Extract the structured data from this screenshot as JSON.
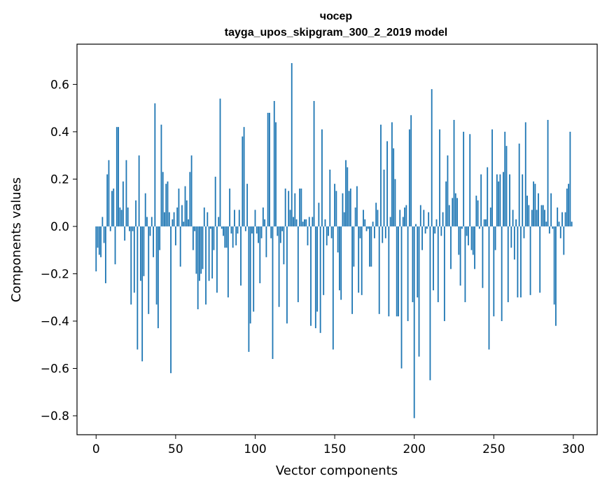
{
  "chart_data": {
    "type": "bar",
    "title_line1": "чосер",
    "title_line2": "tayga_upos_skipgram_300_2_2019 model",
    "xlabel": "Vector components",
    "ylabel": "Components values",
    "xlim": [
      -12,
      315
    ],
    "ylim": [
      -0.88,
      0.77
    ],
    "xticks": [
      0,
      50,
      100,
      150,
      200,
      250,
      300
    ],
    "xtick_labels": [
      "0",
      "50",
      "100",
      "150",
      "200",
      "250",
      "300"
    ],
    "yticks": [
      -0.8,
      -0.6,
      -0.4,
      -0.2,
      0.0,
      0.2,
      0.4,
      0.6
    ],
    "ytick_labels": [
      "−0.8",
      "−0.6",
      "−0.4",
      "−0.2",
      "0.0",
      "0.2",
      "0.4",
      "0.6"
    ],
    "bar_color": "#1f77b4",
    "values": [
      -0.19,
      -0.09,
      -0.12,
      -0.13,
      0.04,
      -0.07,
      -0.24,
      0.22,
      0.28,
      -0.02,
      0.15,
      0.16,
      -0.16,
      0.42,
      0.42,
      0.08,
      0.07,
      0.19,
      -0.06,
      0.28,
      0.08,
      -0.02,
      -0.33,
      -0.02,
      -0.28,
      0.11,
      -0.52,
      0.3,
      -0.23,
      -0.57,
      -0.21,
      0.14,
      0.04,
      -0.37,
      -0.04,
      0.04,
      -0.13,
      0.52,
      -0.33,
      -0.43,
      -0.1,
      0.43,
      0.23,
      0.06,
      0.18,
      0.19,
      0.06,
      -0.62,
      0.03,
      0.06,
      -0.08,
      0.08,
      0.16,
      -0.17,
      0.09,
      0.02,
      0.17,
      0.11,
      0.03,
      0.23,
      0.3,
      -0.1,
      -0.02,
      -0.2,
      -0.35,
      -0.23,
      -0.2,
      -0.18,
      0.08,
      -0.33,
      0.06,
      -0.23,
      -0.01,
      -0.22,
      -0.1,
      0.21,
      -0.28,
      0.04,
      0.54,
      -0.01,
      -0.04,
      -0.09,
      -0.09,
      -0.3,
      0.16,
      -0.03,
      -0.09,
      0.07,
      -0.08,
      -0.03,
      0.07,
      -0.25,
      0.38,
      0.42,
      -0.02,
      0.18,
      -0.53,
      -0.41,
      -0.03,
      -0.36,
      0.07,
      -0.03,
      -0.07,
      -0.24,
      -0.05,
      0.08,
      0.03,
      -0.13,
      0.48,
      0.48,
      -0.05,
      -0.56,
      0.53,
      0.44,
      -0.04,
      -0.34,
      -0.07,
      -0.02,
      -0.16,
      0.16,
      -0.41,
      0.15,
      0.07,
      0.69,
      0.04,
      0.14,
      0.03,
      -0.32,
      0.16,
      0.16,
      0.02,
      0.03,
      0.03,
      -0.08,
      0.04,
      -0.42,
      0.04,
      0.53,
      -0.43,
      -0.36,
      0.1,
      -0.45,
      0.41,
      -0.29,
      0.03,
      -0.08,
      -0.04,
      0.24,
      -0.05,
      -0.52,
      0.18,
      0.15,
      -0.11,
      -0.27,
      -0.31,
      0.14,
      0.06,
      0.28,
      0.25,
      0.15,
      0.16,
      -0.37,
      -0.17,
      0.08,
      0.17,
      -0.28,
      -0.05,
      -0.29,
      0.07,
      0.03,
      -0.02,
      -0.01,
      -0.17,
      -0.17,
      0.02,
      -0.05,
      0.1,
      0.07,
      -0.37,
      0.43,
      -0.07,
      0.24,
      -0.05,
      0.36,
      -0.38,
      0.04,
      0.44,
      0.33,
      0.2,
      -0.38,
      -0.38,
      0.07,
      -0.6,
      0.04,
      0.08,
      0.09,
      -0.4,
      0.41,
      0.47,
      -0.32,
      -0.81,
      0.01,
      -0.3,
      -0.55,
      0.09,
      -0.1,
      0.07,
      -0.03,
      -0.01,
      0.06,
      -0.65,
      0.58,
      -0.27,
      -0.03,
      0.03,
      -0.32,
      0.41,
      -0.04,
      0.06,
      -0.4,
      0.19,
      0.3,
      0.09,
      -0.18,
      0.12,
      0.45,
      0.14,
      0.12,
      -0.12,
      -0.25,
      -0.01,
      0.4,
      -0.32,
      -0.04,
      -0.08,
      0.39,
      -0.1,
      -0.12,
      -0.18,
      0.13,
      0.11,
      -0.01,
      0.22,
      -0.26,
      0.03,
      0.03,
      0.25,
      -0.52,
      0.08,
      0.41,
      -0.38,
      -0.1,
      0.22,
      0.19,
      0.22,
      -0.4,
      0.23,
      0.4,
      0.34,
      -0.32,
      0.22,
      -0.09,
      0.07,
      -0.14,
      0.03,
      -0.3,
      0.35,
      -0.3,
      0.22,
      -0.05,
      0.44,
      0.13,
      0.09,
      -0.29,
      0.07,
      0.19,
      0.18,
      0.07,
      0.14,
      -0.28,
      0.09,
      0.09,
      0.07,
      0.02,
      0.45,
      -0.03,
      0.14,
      -0.01,
      -0.33,
      -0.42,
      0.08,
      0.02,
      -0.05,
      0.06,
      -0.12,
      0.06,
      0.16,
      0.18,
      0.4,
      0.02
    ]
  }
}
